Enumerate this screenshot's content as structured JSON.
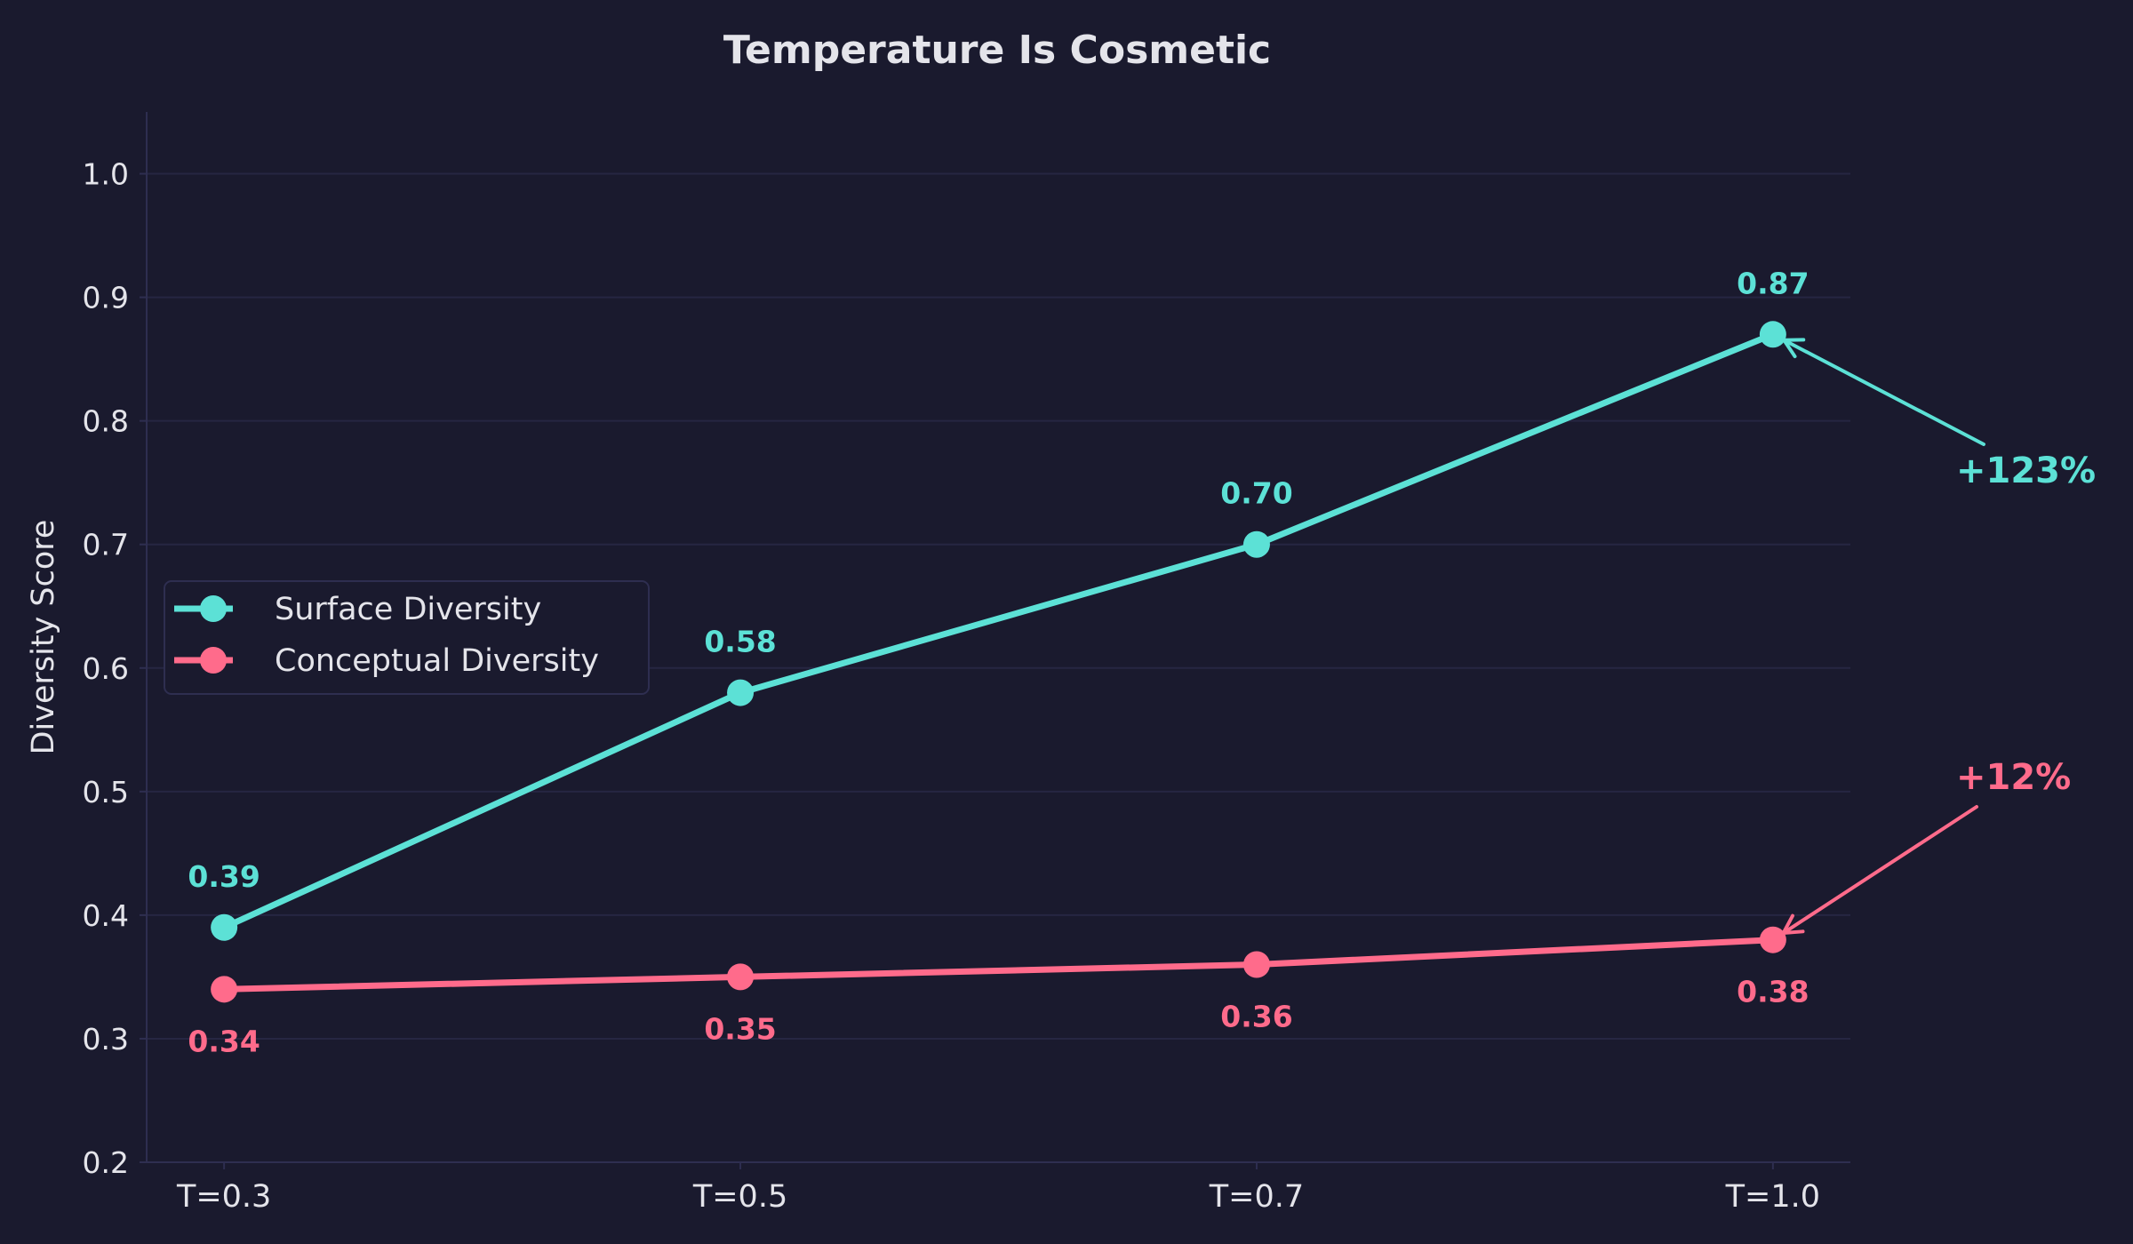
{
  "chart_data": {
    "type": "line",
    "title": "Temperature Is Cosmetic",
    "xlabel": "",
    "ylabel": "Diversity Score",
    "categories": [
      "T=0.3",
      "T=0.5",
      "T=0.7",
      "T=1.0"
    ],
    "ylim": [
      0.2,
      1.05
    ],
    "yticks": [
      0.2,
      0.3,
      0.4,
      0.5,
      0.6,
      0.7,
      0.8,
      0.9,
      1.0
    ],
    "ytick_labels": [
      "0.2",
      "0.3",
      "0.4",
      "0.5",
      "0.6",
      "0.7",
      "0.8",
      "0.9",
      "1.0"
    ],
    "grid": "horizontal",
    "legend_position": "center-left",
    "series": [
      {
        "name": "Surface Diversity",
        "values": [
          0.39,
          0.58,
          0.7,
          0.87
        ],
        "labels": [
          "0.39",
          "0.58",
          "0.70",
          "0.87"
        ],
        "color": "#5ce1d6",
        "label_position": "above"
      },
      {
        "name": "Conceptual Diversity",
        "values": [
          0.34,
          0.35,
          0.36,
          0.38
        ],
        "labels": [
          "0.34",
          "0.35",
          "0.36",
          "0.38"
        ],
        "color": "#ff6b8b",
        "label_position": "below"
      }
    ],
    "annotations": [
      {
        "text": "+123%",
        "series": 0,
        "point": 3,
        "color": "#5ce1d6"
      },
      {
        "text": "+12%",
        "series": 1,
        "point": 3,
        "color": "#ff6b8b"
      }
    ]
  },
  "colors": {
    "background": "#1a1a2e",
    "text": "#e4e4ea",
    "grid": "#262642",
    "spine": "#2e2e50"
  }
}
